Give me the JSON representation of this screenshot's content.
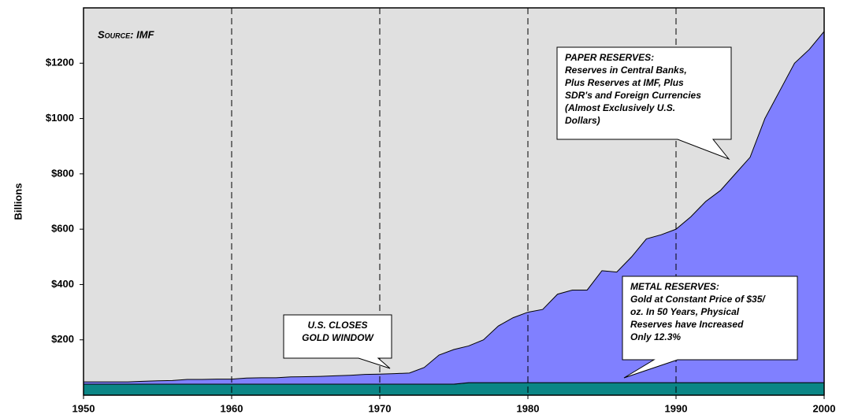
{
  "chart_data": {
    "type": "stacked_area",
    "ylabel": "Billions",
    "source": "Source:  IMF",
    "x": [
      1950,
      1951,
      1952,
      1953,
      1954,
      1955,
      1956,
      1957,
      1958,
      1959,
      1960,
      1961,
      1962,
      1963,
      1964,
      1965,
      1966,
      1967,
      1968,
      1969,
      1970,
      1971,
      1972,
      1973,
      1974,
      1975,
      1976,
      1977,
      1978,
      1979,
      1980,
      1981,
      1982,
      1983,
      1984,
      1985,
      1986,
      1987,
      1988,
      1989,
      1990,
      1991,
      1992,
      1993,
      1994,
      1995,
      1996,
      1997,
      1998,
      1999,
      2000
    ],
    "series": [
      {
        "color": "#0b8686",
        "values": [
          40,
          40,
          40,
          40,
          40,
          40,
          40,
          40,
          40,
          40,
          40,
          40,
          40,
          40,
          40,
          40,
          40,
          40,
          40,
          40,
          40,
          40,
          40,
          40,
          40,
          40,
          45,
          45,
          45,
          45,
          45,
          45,
          45,
          45,
          45,
          45,
          45,
          45,
          45,
          45,
          45,
          45,
          45,
          45,
          45,
          45,
          45,
          45,
          45,
          45,
          45
        ]
      },
      {
        "color": "#8080ff",
        "values": [
          8,
          8,
          8,
          8,
          10,
          12,
          13,
          17,
          17,
          18,
          18,
          22,
          23,
          23,
          26,
          27,
          28,
          30,
          32,
          35,
          36,
          38,
          40,
          60,
          105,
          125,
          133,
          155,
          205,
          235,
          255,
          265,
          320,
          335,
          335,
          405,
          400,
          455,
          520,
          535,
          555,
          600,
          655,
          695,
          755,
          815,
          955,
          1055,
          1155,
          1205,
          1270
        ]
      }
    ],
    "xlim": [
      1950,
      2000
    ],
    "xticks": [
      1950,
      1960,
      1970,
      1980,
      1990,
      2000
    ],
    "ylim": [
      0,
      1400
    ],
    "yticks": [
      {
        "value": 200,
        "label": "$200"
      },
      {
        "value": 400,
        "label": "$400"
      },
      {
        "value": 600,
        "label": "$600"
      },
      {
        "value": 800,
        "label": "$800"
      },
      {
        "value": 1000,
        "label": "$1000"
      },
      {
        "value": 1200,
        "label": "$1200"
      }
    ],
    "grid": true,
    "background": "#e0e0e0",
    "annotations": [
      {
        "lines": [
          "PAPER RESERVES:",
          "Reserves in Central Banks,",
          "Plus Reserves at IMF, Plus",
          "SDR's and Foreign Currencies",
          "(Almost Exclusively U.S.",
          "Dollars)"
        ]
      },
      {
        "lines": [
          "U.S. CLOSES",
          "GOLD WINDOW"
        ]
      },
      {
        "lines": [
          "METAL RESERVES:",
          "Gold at Constant Price of $35/",
          "oz.  In 50 Years, Physical",
          "Reserves have Increased",
          "Only 12.3%"
        ]
      }
    ]
  }
}
